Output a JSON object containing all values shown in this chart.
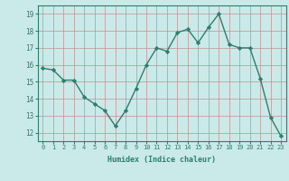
{
  "x": [
    0,
    1,
    2,
    3,
    4,
    5,
    6,
    7,
    8,
    9,
    10,
    11,
    12,
    13,
    14,
    15,
    16,
    17,
    18,
    19,
    20,
    21,
    22,
    23
  ],
  "y": [
    15.8,
    15.7,
    15.1,
    15.1,
    14.1,
    13.7,
    13.3,
    12.4,
    13.3,
    14.6,
    16.0,
    17.0,
    16.8,
    17.9,
    18.1,
    17.3,
    18.2,
    19.0,
    17.2,
    17.0,
    17.0,
    15.2,
    12.9,
    11.8
  ],
  "line_color": "#2e7d6e",
  "marker": "D",
  "marker_size": 2.2,
  "xlabel": "Humidex (Indice chaleur)",
  "xlim": [
    -0.5,
    23.5
  ],
  "ylim": [
    11.5,
    19.5
  ],
  "yticks": [
    12,
    13,
    14,
    15,
    16,
    17,
    18,
    19
  ],
  "xticks": [
    0,
    1,
    2,
    3,
    4,
    5,
    6,
    7,
    8,
    9,
    10,
    11,
    12,
    13,
    14,
    15,
    16,
    17,
    18,
    19,
    20,
    21,
    22,
    23
  ],
  "bg_color": "#caeaea",
  "grid_color": "#c09090",
  "axis_color": "#2e7d6e",
  "tick_color": "#2e7d6e",
  "label_color": "#2e7d6e"
}
